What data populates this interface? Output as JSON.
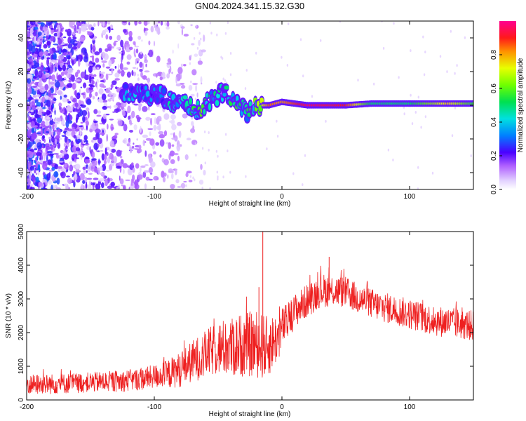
{
  "title": "GN04.2024.341.15.32.G30",
  "colors": {
    "snr_line": "#ee2020",
    "spectrogram_noise": "#7a1fff",
    "colorbar_stops": [
      "#e0d0ff",
      "#9b30ff",
      "#3a00ff",
      "#00a0ff",
      "#00e0e0",
      "#00e060",
      "#60ff00",
      "#e0ff00",
      "#ffb000",
      "#ff2020",
      "#ff0080"
    ]
  },
  "chart_data": [
    {
      "type": "heatmap",
      "name": "spectrogram",
      "xlabel": "Height of straight line (km)",
      "ylabel": "Frequency (Hz)",
      "xlim": [
        -200,
        150
      ],
      "ylim": [
        -50,
        50
      ],
      "xticks": [
        -200,
        -100,
        0,
        100
      ],
      "xtick_labels": [
        "-200",
        "-100",
        "0",
        "100"
      ],
      "yticks": [
        -40,
        -20,
        0,
        20,
        40
      ],
      "ytick_labels": [
        "-40",
        "-20",
        "0",
        "20",
        "40"
      ],
      "colorbar": {
        "label": "Normalized spectral amplitude",
        "ticks": [
          0.0,
          0.2,
          0.4,
          0.6,
          0.8
        ],
        "tick_labels": [
          "0.0",
          "0.2",
          "0.4",
          "0.6",
          "0.8"
        ],
        "range": [
          0,
          1
        ]
      },
      "ridge": [
        {
          "x": -125,
          "y": 8,
          "amp": 0.35
        },
        {
          "x": -110,
          "y": 7,
          "amp": 0.3
        },
        {
          "x": -95,
          "y": 6,
          "amp": 0.3
        },
        {
          "x": -85,
          "y": 2,
          "amp": 0.4
        },
        {
          "x": -75,
          "y": 0,
          "amp": 0.45
        },
        {
          "x": -65,
          "y": -3,
          "amp": 0.5
        },
        {
          "x": -55,
          "y": 4,
          "amp": 0.4
        },
        {
          "x": -45,
          "y": 8,
          "amp": 0.45
        },
        {
          "x": -35,
          "y": 3,
          "amp": 0.45
        },
        {
          "x": -28,
          "y": -5,
          "amp": 0.4
        },
        {
          "x": -20,
          "y": 0,
          "amp": 0.55
        },
        {
          "x": -10,
          "y": 0,
          "amp": 0.85
        },
        {
          "x": 0,
          "y": 2,
          "amp": 0.8
        },
        {
          "x": 20,
          "y": 0,
          "amp": 0.95
        },
        {
          "x": 50,
          "y": 0,
          "amp": 0.9
        },
        {
          "x": 70,
          "y": 1,
          "amp": 0.5
        },
        {
          "x": 100,
          "y": 1,
          "amp": 0.5
        },
        {
          "x": 130,
          "y": 1,
          "amp": 0.75
        },
        {
          "x": 150,
          "y": 1,
          "amp": 0.55
        }
      ]
    },
    {
      "type": "line",
      "name": "snr",
      "xlabel": "Height of straight line (km)",
      "ylabel": "SNR (10 * v/v)",
      "xlim": [
        -200,
        150
      ],
      "ylim": [
        0,
        5000
      ],
      "xticks": [
        -200,
        -100,
        0,
        100
      ],
      "xtick_labels": [
        "-200",
        "-100",
        "0",
        "100"
      ],
      "yticks": [
        0,
        1000,
        2000,
        3000,
        4000,
        5000
      ],
      "ytick_labels": [
        "0",
        "1000",
        "2000",
        "3000",
        "4000",
        "5000"
      ],
      "x": [
        -200,
        -175,
        -150,
        -125,
        -110,
        -100,
        -90,
        -80,
        -70,
        -60,
        -50,
        -40,
        -30,
        -20,
        -12,
        -8,
        -3,
        0,
        5,
        10,
        20,
        30,
        40,
        50,
        60,
        75,
        90,
        100,
        110,
        120,
        130,
        140,
        150
      ],
      "y": [
        450,
        480,
        520,
        560,
        620,
        700,
        760,
        900,
        1150,
        1350,
        1550,
        1550,
        1650,
        1650,
        1550,
        1700,
        1850,
        2150,
        2350,
        2650,
        2950,
        3250,
        3250,
        3200,
        3000,
        2800,
        2650,
        2550,
        2450,
        2350,
        2300,
        2250,
        2200
      ],
      "spread": [
        300,
        300,
        300,
        320,
        330,
        350,
        420,
        520,
        620,
        700,
        800,
        900,
        950,
        1000,
        950,
        850,
        700,
        600,
        550,
        500,
        500,
        500,
        480,
        460,
        450,
        450,
        450,
        450,
        450,
        450,
        450,
        450,
        450
      ],
      "spikes": [
        {
          "x": -15,
          "y": 5050
        },
        {
          "x": -18,
          "y": 3350
        },
        {
          "x": 37,
          "y": 4250
        }
      ]
    }
  ]
}
